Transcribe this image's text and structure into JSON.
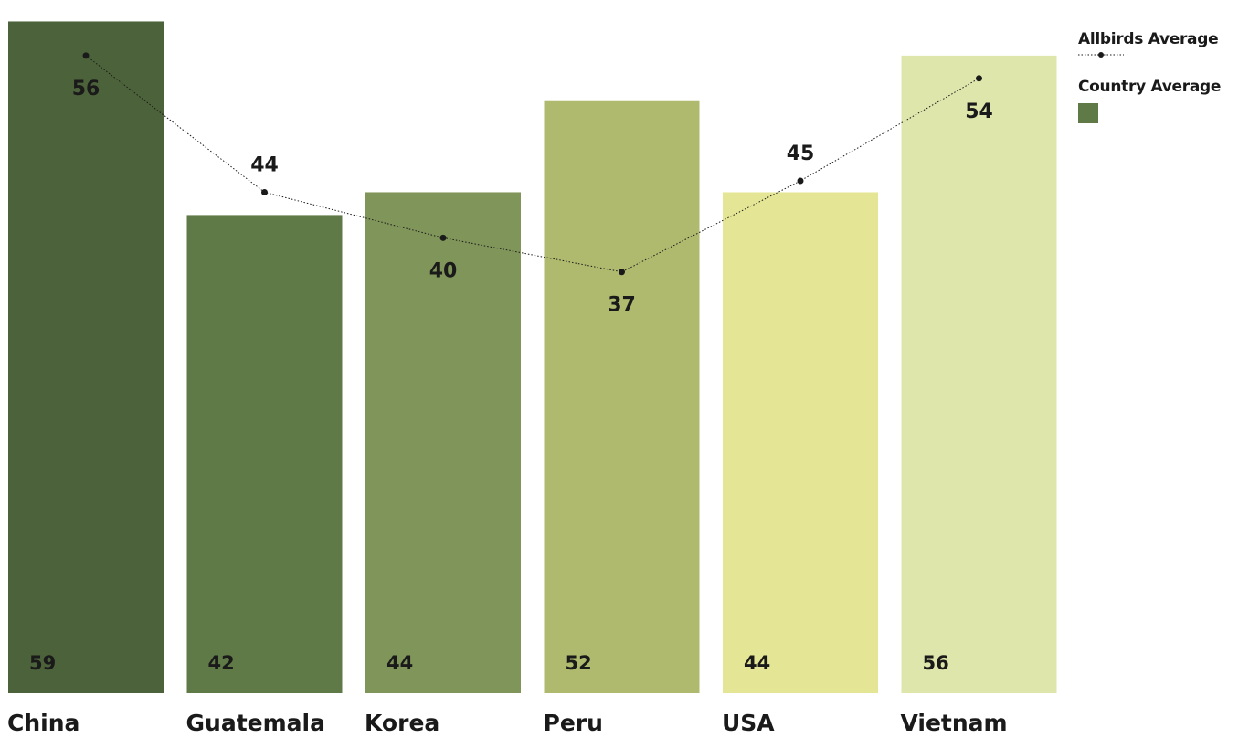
{
  "chart_data": {
    "type": "bar",
    "categories": [
      "China",
      "Guatemala",
      "Korea",
      "Peru",
      "USA",
      "Vietnam"
    ],
    "series": [
      {
        "name": "Country Average",
        "type": "bar",
        "values": [
          59,
          42,
          44,
          52,
          44,
          56
        ],
        "colors": [
          "#4c623a",
          "#5f7a46",
          "#80955a",
          "#afba6e",
          "#e4e695",
          "#dfe6ac"
        ]
      },
      {
        "name": "Allbirds Average",
        "type": "line",
        "style": "dotted",
        "values": [
          56,
          44,
          40,
          37,
          45,
          54
        ],
        "color": "#1a1a1a"
      }
    ],
    "ylim": [
      0,
      60
    ],
    "grid": false,
    "legend": "top-right"
  },
  "legend": {
    "line_label": "Allbirds Average",
    "bar_label": "Country Average",
    "bar_swatch_color": "#5f7a46"
  }
}
